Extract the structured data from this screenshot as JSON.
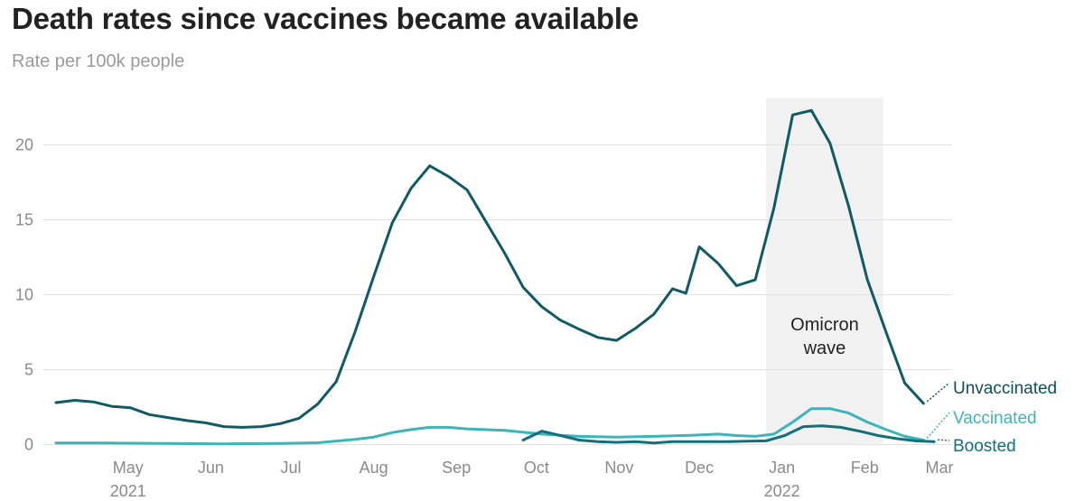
{
  "chart_data": {
    "type": "line",
    "title": "Death rates since vaccines became available",
    "subtitle": "Rate per 100k people",
    "xlabel": "",
    "ylabel": "",
    "x_domain": [
      "2021-04-04",
      "2022-03-01"
    ],
    "ylim": [
      0,
      23
    ],
    "yticks": [
      0,
      5,
      10,
      15,
      20
    ],
    "grid": true,
    "legend": "end-of-line labels",
    "xticks": [
      {
        "date": "2021-05-01",
        "label": "May",
        "year": "2021"
      },
      {
        "date": "2021-06-01",
        "label": "Jun"
      },
      {
        "date": "2021-07-01",
        "label": "Jul"
      },
      {
        "date": "2021-08-01",
        "label": "Aug"
      },
      {
        "date": "2021-09-01",
        "label": "Sep"
      },
      {
        "date": "2021-10-01",
        "label": "Oct"
      },
      {
        "date": "2021-11-01",
        "label": "Nov"
      },
      {
        "date": "2021-12-01",
        "label": "Dec"
      },
      {
        "date": "2022-01-01",
        "label": "Jan",
        "year": "2022"
      },
      {
        "date": "2022-02-01",
        "label": "Feb"
      },
      {
        "date": "2022-03-01",
        "label": "Mar"
      }
    ],
    "annotations": [
      {
        "type": "band",
        "x_start": "2021-12-26",
        "x_end": "2022-02-08",
        "line1": "Omicron",
        "line2": "wave"
      }
    ],
    "series": [
      {
        "name": "Unvaccinated",
        "color": "#0f5a63",
        "points": [
          [
            "2021-04-04",
            2.8
          ],
          [
            "2021-04-11",
            2.95
          ],
          [
            "2021-04-18",
            2.85
          ],
          [
            "2021-04-25",
            2.55
          ],
          [
            "2021-05-02",
            2.45
          ],
          [
            "2021-05-09",
            2.0
          ],
          [
            "2021-05-16",
            1.8
          ],
          [
            "2021-05-23",
            1.6
          ],
          [
            "2021-05-30",
            1.45
          ],
          [
            "2021-06-06",
            1.2
          ],
          [
            "2021-06-13",
            1.15
          ],
          [
            "2021-06-20",
            1.2
          ],
          [
            "2021-06-27",
            1.4
          ],
          [
            "2021-07-04",
            1.75
          ],
          [
            "2021-07-11",
            2.7
          ],
          [
            "2021-07-18",
            4.2
          ],
          [
            "2021-07-25",
            7.5
          ],
          [
            "2021-08-01",
            11.2
          ],
          [
            "2021-08-08",
            14.8
          ],
          [
            "2021-08-15",
            17.1
          ],
          [
            "2021-08-22",
            18.6
          ],
          [
            "2021-08-29",
            17.9
          ],
          [
            "2021-09-05",
            17.0
          ],
          [
            "2021-09-12",
            14.9
          ],
          [
            "2021-09-19",
            12.8
          ],
          [
            "2021-09-26",
            10.5
          ],
          [
            "2021-10-03",
            9.2
          ],
          [
            "2021-10-10",
            8.3
          ],
          [
            "2021-10-17",
            7.7
          ],
          [
            "2021-10-24",
            7.15
          ],
          [
            "2021-10-31",
            6.95
          ],
          [
            "2021-11-07",
            7.75
          ],
          [
            "2021-11-14",
            8.7
          ],
          [
            "2021-11-21",
            10.4
          ],
          [
            "2021-11-26",
            10.1
          ],
          [
            "2021-12-01",
            13.2
          ],
          [
            "2021-12-08",
            12.1
          ],
          [
            "2021-12-15",
            10.6
          ],
          [
            "2021-12-22",
            11.0
          ],
          [
            "2021-12-29",
            15.8
          ],
          [
            "2022-01-05",
            22.0
          ],
          [
            "2022-01-12",
            22.3
          ],
          [
            "2022-01-19",
            20.1
          ],
          [
            "2022-01-26",
            15.9
          ],
          [
            "2022-02-02",
            11.0
          ],
          [
            "2022-02-09",
            7.5
          ],
          [
            "2022-02-16",
            4.1
          ],
          [
            "2022-02-23",
            2.75
          ]
        ]
      },
      {
        "name": "Vaccinated",
        "color": "#3cb4b8",
        "points": [
          [
            "2021-04-04",
            0.1
          ],
          [
            "2021-04-25",
            0.1
          ],
          [
            "2021-05-16",
            0.08
          ],
          [
            "2021-06-06",
            0.05
          ],
          [
            "2021-06-27",
            0.08
          ],
          [
            "2021-07-11",
            0.12
          ],
          [
            "2021-07-25",
            0.35
          ],
          [
            "2021-08-01",
            0.5
          ],
          [
            "2021-08-08",
            0.8
          ],
          [
            "2021-08-15",
            1.0
          ],
          [
            "2021-08-22",
            1.15
          ],
          [
            "2021-08-29",
            1.15
          ],
          [
            "2021-09-05",
            1.05
          ],
          [
            "2021-09-19",
            0.95
          ],
          [
            "2021-10-03",
            0.7
          ],
          [
            "2021-10-17",
            0.55
          ],
          [
            "2021-10-31",
            0.5
          ],
          [
            "2021-11-14",
            0.55
          ],
          [
            "2021-11-28",
            0.62
          ],
          [
            "2021-12-08",
            0.7
          ],
          [
            "2021-12-15",
            0.6
          ],
          [
            "2021-12-22",
            0.55
          ],
          [
            "2021-12-29",
            0.7
          ],
          [
            "2022-01-05",
            1.5
          ],
          [
            "2022-01-12",
            2.4
          ],
          [
            "2022-01-19",
            2.4
          ],
          [
            "2022-01-26",
            2.1
          ],
          [
            "2022-02-02",
            1.5
          ],
          [
            "2022-02-09",
            1.0
          ],
          [
            "2022-02-16",
            0.55
          ],
          [
            "2022-02-23",
            0.3
          ]
        ]
      },
      {
        "name": "Boosted",
        "color": "#12707a",
        "points": [
          [
            "2021-09-26",
            0.3
          ],
          [
            "2021-10-03",
            0.9
          ],
          [
            "2021-10-10",
            0.6
          ],
          [
            "2021-10-17",
            0.3
          ],
          [
            "2021-10-24",
            0.2
          ],
          [
            "2021-10-31",
            0.15
          ],
          [
            "2021-11-07",
            0.2
          ],
          [
            "2021-11-14",
            0.1
          ],
          [
            "2021-11-21",
            0.2
          ],
          [
            "2021-11-28",
            0.2
          ],
          [
            "2021-12-05",
            0.2
          ],
          [
            "2021-12-12",
            0.2
          ],
          [
            "2021-12-19",
            0.22
          ],
          [
            "2021-12-26",
            0.25
          ],
          [
            "2022-01-02",
            0.6
          ],
          [
            "2022-01-09",
            1.2
          ],
          [
            "2022-01-16",
            1.25
          ],
          [
            "2022-01-23",
            1.15
          ],
          [
            "2022-01-30",
            0.9
          ],
          [
            "2022-02-06",
            0.6
          ],
          [
            "2022-02-13",
            0.4
          ],
          [
            "2022-02-20",
            0.25
          ],
          [
            "2022-02-27",
            0.2
          ]
        ]
      }
    ]
  }
}
